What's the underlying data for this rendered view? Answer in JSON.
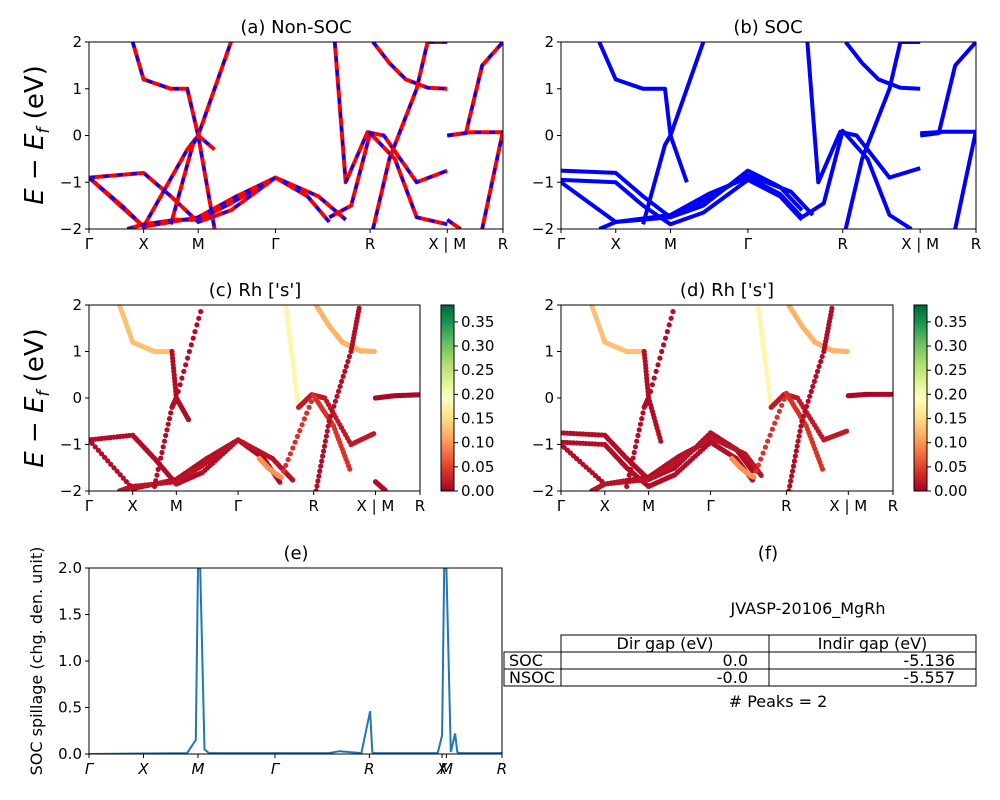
{
  "colors": {
    "nonsoc_solid": "#ff0000",
    "nonsoc_dash": "#0000ff",
    "soc": "#0000ff",
    "spillage": "#1f77b4",
    "cmap": [
      "#a50026",
      "#d73027",
      "#f46d43",
      "#fdae61",
      "#fee08b",
      "#ffffbf",
      "#d9ef8b",
      "#a6d96a",
      "#66bd63",
      "#1a9850",
      "#006837"
    ]
  },
  "ylabel_main": "E − E_f (eV)",
  "panels": {
    "a": {
      "title": "(a) Non-SOC"
    },
    "b": {
      "title": "(b) SOC"
    },
    "c": {
      "title": "(c)  Rh ['s']"
    },
    "d": {
      "title": "(d) Rh ['s']"
    },
    "e": {
      "title": "(e)",
      "ylabel": "SOC spillage (chg. den. unit)"
    },
    "f": {
      "title": "(f)"
    }
  },
  "chart_data": [
    {
      "id": "a",
      "type": "line",
      "kpath_labels": [
        "Γ",
        "X",
        "M",
        "Γ",
        "R",
        "X | M",
        "R"
      ],
      "kpath_positions": [
        0,
        0.5,
        1.0,
        1.707,
        2.573,
        3.28,
        3.79
      ],
      "ylim": [
        -2,
        2
      ],
      "yticks": [
        -2,
        -1,
        0,
        1,
        2
      ],
      "series": [
        {
          "x": [
            0,
            0.5,
            0.75,
            1.0,
            1.3,
            1.707
          ],
          "y": [
            -0.9,
            -0.8,
            -1.3,
            -1.85,
            -1.6,
            -0.9
          ]
        },
        {
          "x": [
            0,
            0.5,
            1.0,
            1.35,
            1.707,
            2.0,
            2.2
          ],
          "y": [
            -0.9,
            -1.95,
            -1.75,
            -1.3,
            -0.9,
            -1.3,
            -1.85
          ]
        },
        {
          "x": [
            0,
            0.3,
            0.5,
            0.9,
            1.0,
            1.15
          ],
          "y": [
            -0.9,
            -1.5,
            -1.95,
            -0.3,
            0.0,
            -2.0
          ]
        },
        {
          "x": [
            0.35,
            0.5,
            0.8,
            1.0,
            1.3,
            1.707,
            2.1,
            2.35
          ],
          "y": [
            -2.0,
            -1.9,
            -1.8,
            -1.8,
            -1.45,
            -0.9,
            -1.3,
            -1.8
          ]
        },
        {
          "x": [
            0.4,
            0.5,
            0.75,
            0.9,
            1.0,
            1.15
          ],
          "y": [
            2.0,
            1.2,
            1.0,
            1.0,
            0.0,
            -0.3
          ]
        },
        {
          "x": [
            0.75,
            0.95,
            1.0,
            1.3
          ],
          "y": [
            -1.9,
            -0.2,
            0.0,
            2.0
          ]
        },
        {
          "x": [
            2.25,
            2.35,
            2.55,
            2.7,
            3.0,
            3.28
          ],
          "y": [
            2.0,
            -1.0,
            0.07,
            0.0,
            -1.0,
            -0.75
          ]
        },
        {
          "x": [
            2.2,
            2.4,
            2.573,
            2.8,
            3.0,
            3.28
          ],
          "y": [
            -1.75,
            -1.5,
            0.05,
            -0.5,
            -1.75,
            -1.9
          ]
        },
        {
          "x": [
            2.6,
            2.75,
            2.9,
            3.1,
            3.28
          ],
          "y": [
            2.0,
            1.55,
            1.2,
            1.02,
            1.0
          ]
        },
        {
          "x": [
            2.6,
            2.75,
            3.0,
            3.1,
            3.28
          ],
          "y": [
            -2.0,
            -0.5,
            1.0,
            2.0,
            2.0
          ]
        },
        {
          "x": [
            3.28,
            3.45,
            3.6,
            3.79
          ],
          "y": [
            0.0,
            0.05,
            1.5,
            2.0
          ]
        },
        {
          "x": [
            3.28,
            3.5,
            3.79
          ],
          "y": [
            0.0,
            0.07,
            0.07
          ]
        },
        {
          "x": [
            3.6,
            3.79
          ],
          "y": [
            -2.0,
            0.1
          ]
        },
        {
          "x": [
            3.28,
            3.4
          ],
          "y": [
            -1.8,
            -2.0
          ]
        }
      ]
    },
    {
      "id": "b",
      "type": "line",
      "kpath_labels": [
        "Γ",
        "X",
        "M",
        "Γ",
        "R",
        "X | M",
        "R"
      ],
      "kpath_positions": [
        0,
        0.5,
        1.0,
        1.707,
        2.573,
        3.28,
        3.79
      ],
      "ylim": [
        -2,
        2
      ],
      "yticks": [
        -2,
        -1,
        0,
        1,
        2
      ],
      "series": [
        {
          "x": [
            0,
            0.5,
            0.75,
            1.0,
            1.3,
            1.707,
            2.0,
            2.2
          ],
          "y": [
            -0.75,
            -0.8,
            -1.3,
            -1.75,
            -1.5,
            -0.75,
            -1.1,
            -1.6
          ]
        },
        {
          "x": [
            0,
            0.5,
            0.75,
            1.0,
            1.3,
            1.707,
            2.0,
            2.2
          ],
          "y": [
            -0.95,
            -1.0,
            -1.5,
            -1.9,
            -1.65,
            -0.95,
            -1.3,
            -1.8
          ]
        },
        {
          "x": [
            0,
            0.5,
            1.0,
            1.35,
            1.707,
            2.0,
            2.2
          ],
          "y": [
            -1.0,
            -1.85,
            -1.7,
            -1.25,
            -0.9,
            -1.25,
            -1.75
          ]
        },
        {
          "x": [
            0.35,
            0.5,
            1.0,
            1.3,
            1.707,
            2.1,
            2.3
          ],
          "y": [
            -2.0,
            -1.85,
            -1.75,
            -1.4,
            -0.85,
            -1.2,
            -1.7
          ]
        },
        {
          "x": [
            0.35,
            0.5,
            0.75,
            0.95,
            1.0,
            1.15
          ],
          "y": [
            2.0,
            1.2,
            1.0,
            1.0,
            0.0,
            -1.0
          ]
        },
        {
          "x": [
            0.75,
            0.95,
            1.0,
            1.3
          ],
          "y": [
            -1.9,
            -0.2,
            0.0,
            2.0
          ]
        },
        {
          "x": [
            2.25,
            2.35,
            2.55,
            2.7,
            3.0,
            3.28
          ],
          "y": [
            2.0,
            -1.0,
            0.08,
            0.0,
            -0.9,
            -0.7
          ]
        },
        {
          "x": [
            2.2,
            2.4,
            2.573,
            2.8,
            3.0,
            3.2
          ],
          "y": [
            -1.75,
            -1.45,
            0.1,
            -0.5,
            -1.7,
            -2.0
          ]
        },
        {
          "x": [
            2.6,
            2.75,
            2.9,
            3.1,
            3.28
          ],
          "y": [
            2.0,
            1.55,
            1.2,
            1.02,
            1.0
          ]
        },
        {
          "x": [
            2.6,
            2.75,
            3.0,
            3.1,
            3.28
          ],
          "y": [
            -2.0,
            -0.5,
            1.0,
            2.0,
            2.0
          ]
        },
        {
          "x": [
            3.28,
            3.45,
            3.6,
            3.79
          ],
          "y": [
            0.0,
            0.05,
            1.5,
            2.0
          ]
        },
        {
          "x": [
            3.28,
            3.5,
            3.79
          ],
          "y": [
            0.05,
            0.08,
            0.08
          ]
        },
        {
          "x": [
            3.6,
            3.79
          ],
          "y": [
            -2.0,
            0.1
          ]
        }
      ]
    },
    {
      "id": "c",
      "type": "scatter",
      "kpath_labels": [
        "Γ",
        "X",
        "M",
        "Γ",
        "R",
        "X | M",
        "R"
      ],
      "kpath_positions": [
        0,
        0.5,
        1.0,
        1.707,
        2.573,
        3.28,
        3.79
      ],
      "ylim": [
        -2,
        2
      ],
      "yticks": [
        -2,
        -1,
        0,
        1,
        2
      ],
      "colorbar": {
        "min": 0.0,
        "max": 0.385,
        "ticks": [
          "0.00",
          "0.05",
          "0.10",
          "0.15",
          "0.20",
          "0.25",
          "0.30",
          "0.35"
        ]
      },
      "series": [
        {
          "x": [
            0,
            0.5,
            0.75,
            1.0,
            1.3,
            1.707
          ],
          "y": [
            -0.9,
            -0.8,
            -1.3,
            -1.85,
            -1.6,
            -0.9
          ],
          "c": 0.01
        },
        {
          "x": [
            0,
            0.5,
            1.0,
            1.35,
            1.707,
            2.0,
            2.2
          ],
          "y": [
            -0.9,
            -1.95,
            -1.75,
            -1.3,
            -0.9,
            -1.3,
            -1.85
          ],
          "c": 0.01
        },
        {
          "x": [
            0.35,
            0.5,
            1.0,
            1.3,
            1.707,
            2.1,
            2.35
          ],
          "y": [
            -2.0,
            -1.9,
            -1.8,
            -1.45,
            -0.9,
            -1.3,
            -1.8
          ],
          "c": 0.015
        },
        {
          "x": [
            0.35,
            0.5,
            0.75,
            0.95
          ],
          "y": [
            2.0,
            1.2,
            1.0,
            1.0
          ],
          "c": 0.13
        },
        {
          "x": [
            0.95,
            1.0,
            1.15
          ],
          "y": [
            1.0,
            0.0,
            -0.5
          ],
          "c": 0.01
        },
        {
          "x": [
            0.75,
            0.95,
            1.0,
            1.3
          ],
          "y": [
            -1.9,
            -0.2,
            0.0,
            2.0
          ],
          "c": 0.01
        },
        {
          "x": [
            2.25,
            2.32,
            2.4
          ],
          "y": [
            2.0,
            1.0,
            -0.2
          ],
          "c": 0.18
        },
        {
          "x": [
            2.4,
            2.55,
            2.7,
            3.0,
            3.28
          ],
          "y": [
            -0.2,
            0.07,
            0.0,
            -1.0,
            -0.75
          ],
          "c": 0.02
        },
        {
          "x": [
            2.2,
            2.573,
            2.8,
            3.0
          ],
          "y": [
            -1.7,
            0.05,
            -0.6,
            -1.6
          ],
          "c": 0.04
        },
        {
          "x": [
            2.6,
            2.75,
            2.9,
            3.1,
            3.28
          ],
          "y": [
            2.0,
            1.55,
            1.2,
            1.02,
            1.0
          ],
          "c": 0.12
        },
        {
          "x": [
            2.6,
            2.75,
            3.0,
            3.1
          ],
          "y": [
            -2.0,
            -0.5,
            1.0,
            2.0
          ],
          "c": 0.01
        },
        {
          "x": [
            3.28,
            3.5,
            3.79
          ],
          "y": [
            0.0,
            0.05,
            0.07
          ],
          "c": 0.005
        },
        {
          "x": [
            3.28,
            3.4
          ],
          "y": [
            -1.8,
            -2.0
          ],
          "c": 0.01
        },
        {
          "x": [
            1.95,
            2.05,
            2.15,
            2.2
          ],
          "y": [
            -1.3,
            -1.5,
            -1.65,
            -1.7
          ],
          "c": 0.1
        }
      ]
    },
    {
      "id": "d",
      "type": "scatter",
      "kpath_labels": [
        "Γ",
        "X",
        "M",
        "Γ",
        "R",
        "X | M",
        "R"
      ],
      "kpath_positions": [
        0,
        0.5,
        1.0,
        1.707,
        2.573,
        3.28,
        3.79
      ],
      "ylim": [
        -2,
        2
      ],
      "yticks": [
        -2,
        -1,
        0,
        1,
        2
      ],
      "colorbar": {
        "min": 0.0,
        "max": 0.385,
        "ticks": [
          "0.00",
          "0.05",
          "0.10",
          "0.15",
          "0.20",
          "0.25",
          "0.30",
          "0.35"
        ]
      },
      "series": [
        {
          "x": [
            0,
            0.5,
            0.75,
            1.0,
            1.3,
            1.707,
            2.0,
            2.2
          ],
          "y": [
            -0.75,
            -0.8,
            -1.3,
            -1.75,
            -1.5,
            -0.75,
            -1.1,
            -1.6
          ],
          "c": 0.01
        },
        {
          "x": [
            0,
            0.5,
            0.75,
            1.0,
            1.3,
            1.707,
            2.0,
            2.2
          ],
          "y": [
            -0.95,
            -1.0,
            -1.5,
            -1.9,
            -1.65,
            -0.95,
            -1.3,
            -1.8
          ],
          "c": 0.01
        },
        {
          "x": [
            0,
            0.5,
            1.0,
            1.35,
            1.707
          ],
          "y": [
            -1.0,
            -1.85,
            -1.7,
            -1.25,
            -0.9
          ],
          "c": 0.01
        },
        {
          "x": [
            0.35,
            0.5,
            1.0,
            1.3,
            1.707,
            2.1,
            2.3
          ],
          "y": [
            -2.0,
            -1.85,
            -1.75,
            -1.4,
            -0.85,
            -1.2,
            -1.7
          ],
          "c": 0.015
        },
        {
          "x": [
            0.35,
            0.5,
            0.75,
            0.95
          ],
          "y": [
            2.0,
            1.2,
            1.0,
            1.0
          ],
          "c": 0.13
        },
        {
          "x": [
            0.95,
            1.0,
            1.15
          ],
          "y": [
            1.0,
            0.0,
            -1.0
          ],
          "c": 0.01
        },
        {
          "x": [
            0.75,
            0.95,
            1.0,
            1.3
          ],
          "y": [
            -1.9,
            -0.2,
            0.0,
            2.0
          ],
          "c": 0.01
        },
        {
          "x": [
            2.25,
            2.32,
            2.4
          ],
          "y": [
            2.0,
            1.0,
            -0.2
          ],
          "c": 0.18
        },
        {
          "x": [
            2.4,
            2.55,
            2.7,
            3.0,
            3.28
          ],
          "y": [
            -0.2,
            0.08,
            0.0,
            -0.9,
            -0.7
          ],
          "c": 0.02
        },
        {
          "x": [
            2.2,
            2.573,
            2.8,
            3.0
          ],
          "y": [
            -1.7,
            0.1,
            -0.6,
            -1.6
          ],
          "c": 0.04
        },
        {
          "x": [
            2.6,
            2.75,
            2.9,
            3.1,
            3.28
          ],
          "y": [
            2.0,
            1.55,
            1.2,
            1.02,
            1.0
          ],
          "c": 0.12
        },
        {
          "x": [
            2.6,
            2.75,
            3.0,
            3.1
          ],
          "y": [
            -2.0,
            -0.5,
            1.0,
            2.0
          ],
          "c": 0.01
        },
        {
          "x": [
            3.28,
            3.5,
            3.79
          ],
          "y": [
            0.05,
            0.08,
            0.08
          ],
          "c": 0.005
        },
        {
          "x": [
            1.95,
            2.05,
            2.15,
            2.2
          ],
          "y": [
            -1.3,
            -1.5,
            -1.65,
            -1.7
          ],
          "c": 0.1
        }
      ]
    },
    {
      "id": "e",
      "type": "line",
      "kpath_labels": [
        "Γ",
        "X",
        "M",
        "Γ",
        "R",
        "X",
        "M",
        "R"
      ],
      "kpath_positions": [
        0,
        0.5,
        1.0,
        1.707,
        2.573,
        3.24,
        3.28,
        3.79
      ],
      "ylim": [
        0,
        2.0
      ],
      "yticks": [
        "0.0",
        "0.5",
        "1.0",
        "1.5",
        "2.0"
      ],
      "series": [
        {
          "name": "",
          "x": [
            0,
            0.9,
            0.98,
            1.0,
            1.02,
            1.06,
            1.1,
            2.2,
            2.3,
            2.5,
            2.58,
            2.6,
            2.62,
            3.2,
            3.24,
            3.26,
            3.28,
            3.32,
            3.36,
            3.38,
            3.4,
            3.79
          ],
          "y": [
            0,
            0.01,
            0.15,
            2.0,
            2.0,
            0.05,
            0.01,
            0.01,
            0.03,
            0.01,
            0.46,
            0.02,
            0.01,
            0.01,
            0.2,
            2.0,
            2.0,
            0.02,
            0.22,
            0.02,
            0.01,
            0.01
          ]
        }
      ]
    }
  ],
  "table": {
    "title": "JVASP-20106_MgRh",
    "columns": [
      "",
      "Dir gap (eV)",
      "Indir gap (eV)"
    ],
    "rows": [
      [
        "SOC",
        "0.0",
        "-5.136"
      ],
      [
        "NSOC",
        "-0.0",
        "-5.557"
      ]
    ],
    "footer": "# Peaks = 2"
  }
}
